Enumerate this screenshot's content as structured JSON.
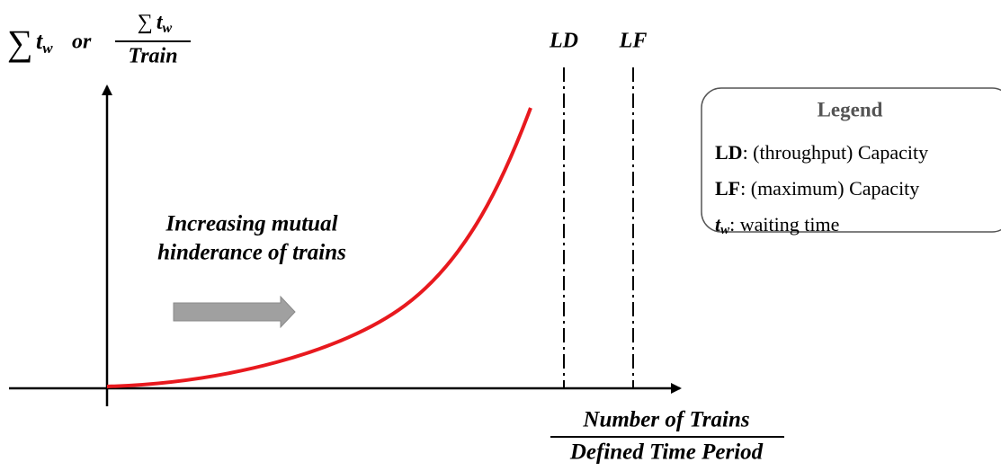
{
  "y_axis_label": {
    "total": {
      "symbol": "∑",
      "var": "t",
      "sub": "w"
    },
    "conj": "or",
    "ratio": {
      "numerator": {
        "symbol": "∑",
        "var": "t",
        "sub": "w"
      },
      "denominator": "Train"
    }
  },
  "x_axis_label": {
    "numerator": "Number of Trains",
    "denominator": "Defined Time Period"
  },
  "markers": [
    "LD",
    "LF"
  ],
  "annotation": [
    "Increasing mutual",
    "hinderance of trains"
  ],
  "legend": {
    "title": "Legend",
    "items": [
      {
        "key": "LD",
        "text": ": (throughput)  Capacity"
      },
      {
        "key": "LF",
        "text": ": (maximum) Capacity"
      },
      {
        "key": "t",
        "key_sub": "w",
        "text": ": waiting time"
      }
    ]
  }
}
